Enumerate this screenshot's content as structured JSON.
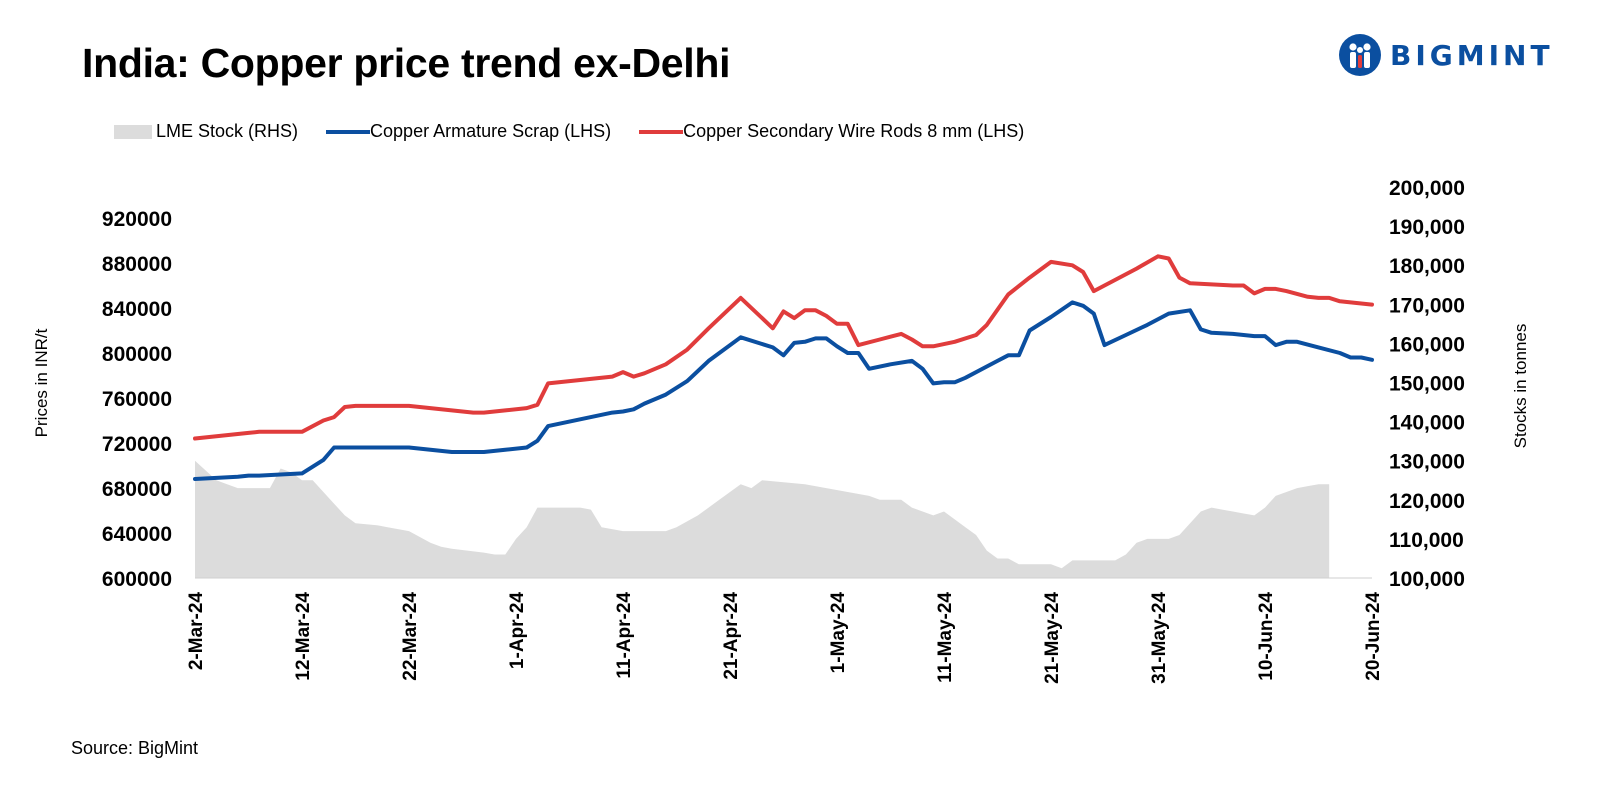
{
  "header": {
    "title": "India: Copper price trend ex-Delhi"
  },
  "logo": {
    "text": "BIGMINT",
    "color": "#0b4fa0"
  },
  "footer": {
    "source": "Source: BigMint"
  },
  "chart_data": {
    "type": "line",
    "title": "India: Copper price trend ex-Delhi",
    "ylabel": "Prices in INR/t",
    "y2label": "Stocks in tonnes",
    "ylim": [
      600000,
      920000
    ],
    "yticks": [
      "920000",
      "880000",
      "840000",
      "800000",
      "760000",
      "720000",
      "680000",
      "640000",
      "600000"
    ],
    "y2lim": [
      100000,
      200000
    ],
    "y2ticks": [
      "200,000",
      "190,000",
      "180,000",
      "170,000",
      "160,000",
      "150,000",
      "140,000",
      "130,000",
      "120,000",
      "110,000",
      "100,000"
    ],
    "xlim_days": [
      0,
      110
    ],
    "xticks": [
      {
        "label": "2-Mar-24",
        "day": 0
      },
      {
        "label": "12-Mar-24",
        "day": 10
      },
      {
        "label": "22-Mar-24",
        "day": 20
      },
      {
        "label": "1-Apr-24",
        "day": 30
      },
      {
        "label": "11-Apr-24",
        "day": 40
      },
      {
        "label": "21-Apr-24",
        "day": 50
      },
      {
        "label": "1-May-24",
        "day": 60
      },
      {
        "label": "11-May-24",
        "day": 70
      },
      {
        "label": "21-May-24",
        "day": 80
      },
      {
        "label": "31-May-24",
        "day": 90
      },
      {
        "label": "10-Jun-24",
        "day": 100
      },
      {
        "label": "20-Jun-24",
        "day": 110
      }
    ],
    "legend_position": "top-left",
    "series": [
      {
        "name": "LME Stock (RHS)",
        "kind": "area",
        "axis": "right",
        "color": "#dcdcdc",
        "points": [
          [
            0,
            130000
          ],
          [
            1,
            127500
          ],
          [
            2,
            125000
          ],
          [
            3,
            124000
          ],
          [
            4,
            123000
          ],
          [
            5,
            123000
          ],
          [
            6,
            123000
          ],
          [
            7,
            123000
          ],
          [
            8,
            128000
          ],
          [
            9,
            127000
          ],
          [
            10,
            125000
          ],
          [
            11,
            125000
          ],
          [
            12,
            122000
          ],
          [
            13,
            119000
          ],
          [
            14,
            116000
          ],
          [
            15,
            114000
          ],
          [
            17,
            113500
          ],
          [
            18,
            113000
          ],
          [
            20,
            112000
          ],
          [
            22,
            109000
          ],
          [
            23,
            108000
          ],
          [
            24,
            107500
          ],
          [
            27,
            106500
          ],
          [
            28,
            106000
          ],
          [
            29,
            106000
          ],
          [
            30,
            110000
          ],
          [
            31,
            113000
          ],
          [
            32,
            118000
          ],
          [
            34,
            118000
          ],
          [
            36,
            118000
          ],
          [
            37,
            117500
          ],
          [
            38,
            113000
          ],
          [
            40,
            112000
          ],
          [
            42,
            112000
          ],
          [
            43,
            112000
          ],
          [
            44,
            112000
          ],
          [
            45,
            113000
          ],
          [
            47,
            116000
          ],
          [
            49,
            120000
          ],
          [
            50,
            122000
          ],
          [
            51,
            124000
          ],
          [
            52,
            123000
          ],
          [
            53,
            125000
          ],
          [
            55,
            124500
          ],
          [
            57,
            124000
          ],
          [
            59,
            123000
          ],
          [
            61,
            122000
          ],
          [
            63,
            121000
          ],
          [
            64,
            120000
          ],
          [
            65,
            120000
          ],
          [
            66,
            120000
          ],
          [
            67,
            118000
          ],
          [
            68,
            117000
          ],
          [
            69,
            116000
          ],
          [
            70,
            117000
          ],
          [
            71,
            115000
          ],
          [
            72,
            113000
          ],
          [
            73,
            111000
          ],
          [
            74,
            107000
          ],
          [
            75,
            105000
          ],
          [
            76,
            105000
          ],
          [
            77,
            103500
          ],
          [
            78,
            103500
          ],
          [
            79,
            103500
          ],
          [
            80,
            103500
          ],
          [
            81,
            102500
          ],
          [
            82,
            104500
          ],
          [
            83,
            104500
          ],
          [
            84,
            104500
          ],
          [
            85,
            104500
          ],
          [
            86,
            104500
          ],
          [
            87,
            106000
          ],
          [
            88,
            109000
          ],
          [
            89,
            110000
          ],
          [
            90,
            110000
          ],
          [
            91,
            110000
          ],
          [
            92,
            111000
          ],
          [
            93,
            114000
          ],
          [
            94,
            117000
          ],
          [
            95,
            118000
          ],
          [
            96,
            117500
          ],
          [
            97,
            117000
          ],
          [
            98,
            116500
          ],
          [
            99,
            116000
          ],
          [
            100,
            118000
          ],
          [
            101,
            121000
          ],
          [
            102,
            122000
          ],
          [
            103,
            123000
          ],
          [
            104,
            123500
          ],
          [
            105,
            124000
          ],
          [
            106,
            124000
          ]
        ]
      },
      {
        "name": "Copper Armature Scrap (LHS)",
        "kind": "line",
        "axis": "left",
        "color": "#0b4fa0",
        "points": [
          [
            0,
            688000
          ],
          [
            2,
            689000
          ],
          [
            4,
            690000
          ],
          [
            5,
            691000
          ],
          [
            6,
            691000
          ],
          [
            8,
            692000
          ],
          [
            10,
            693000
          ],
          [
            12,
            705000
          ],
          [
            13,
            716000
          ],
          [
            15,
            716000
          ],
          [
            17,
            716000
          ],
          [
            20,
            716000
          ],
          [
            22,
            714000
          ],
          [
            24,
            712000
          ],
          [
            27,
            712000
          ],
          [
            29,
            714000
          ],
          [
            31,
            716000
          ],
          [
            32,
            722000
          ],
          [
            33,
            735000
          ],
          [
            35,
            739000
          ],
          [
            37,
            743000
          ],
          [
            39,
            747000
          ],
          [
            40,
            748000
          ],
          [
            41,
            750000
          ],
          [
            42,
            755000
          ],
          [
            44,
            763000
          ],
          [
            46,
            775000
          ],
          [
            48,
            793000
          ],
          [
            51,
            814000
          ],
          [
            54,
            805000
          ],
          [
            55,
            798000
          ],
          [
            56,
            809000
          ],
          [
            57,
            810000
          ],
          [
            58,
            813000
          ],
          [
            59,
            813000
          ],
          [
            60,
            806000
          ],
          [
            61,
            800000
          ],
          [
            62,
            800000
          ],
          [
            63,
            786000
          ],
          [
            65,
            790000
          ],
          [
            67,
            793000
          ],
          [
            68,
            786000
          ],
          [
            69,
            773000
          ],
          [
            70,
            774000
          ],
          [
            71,
            774000
          ],
          [
            72,
            778000
          ],
          [
            74,
            788000
          ],
          [
            75,
            793000
          ],
          [
            76,
            798000
          ],
          [
            77,
            798000
          ],
          [
            78,
            820000
          ],
          [
            80,
            832000
          ],
          [
            82,
            845000
          ],
          [
            83,
            842000
          ],
          [
            84,
            835000
          ],
          [
            85,
            807000
          ],
          [
            87,
            816000
          ],
          [
            89,
            825000
          ],
          [
            91,
            835000
          ],
          [
            93,
            838000
          ],
          [
            94,
            821000
          ],
          [
            95,
            818000
          ],
          [
            97,
            817000
          ],
          [
            99,
            815000
          ],
          [
            100,
            815000
          ],
          [
            101,
            807000
          ],
          [
            102,
            810000
          ],
          [
            103,
            810000
          ],
          [
            105,
            805000
          ],
          [
            107,
            800000
          ],
          [
            108,
            796000
          ],
          [
            109,
            796000
          ],
          [
            110,
            794000
          ]
        ]
      },
      {
        "name": "Copper Secondary Wire Rods 8 mm (LHS)",
        "kind": "line",
        "axis": "left",
        "color": "#e03c3c",
        "points": [
          [
            0,
            724000
          ],
          [
            2,
            726000
          ],
          [
            4,
            728000
          ],
          [
            5,
            729000
          ],
          [
            6,
            730000
          ],
          [
            8,
            730000
          ],
          [
            10,
            730000
          ],
          [
            12,
            740000
          ],
          [
            13,
            743000
          ],
          [
            14,
            752000
          ],
          [
            15,
            753000
          ],
          [
            17,
            753000
          ],
          [
            20,
            753000
          ],
          [
            22,
            751000
          ],
          [
            24,
            749000
          ],
          [
            26,
            747000
          ],
          [
            27,
            747000
          ],
          [
            29,
            749000
          ],
          [
            31,
            751000
          ],
          [
            32,
            754000
          ],
          [
            33,
            773000
          ],
          [
            35,
            775000
          ],
          [
            37,
            777000
          ],
          [
            39,
            779000
          ],
          [
            40,
            783000
          ],
          [
            41,
            779000
          ],
          [
            42,
            782000
          ],
          [
            44,
            790000
          ],
          [
            46,
            803000
          ],
          [
            48,
            822000
          ],
          [
            51,
            849000
          ],
          [
            53,
            831000
          ],
          [
            54,
            822000
          ],
          [
            55,
            837000
          ],
          [
            56,
            831000
          ],
          [
            57,
            838000
          ],
          [
            58,
            838000
          ],
          [
            59,
            833000
          ],
          [
            60,
            826000
          ],
          [
            61,
            826000
          ],
          [
            62,
            807000
          ],
          [
            64,
            812000
          ],
          [
            66,
            817000
          ],
          [
            67,
            812000
          ],
          [
            68,
            806000
          ],
          [
            69,
            806000
          ],
          [
            71,
            810000
          ],
          [
            73,
            816000
          ],
          [
            74,
            825000
          ],
          [
            76,
            852000
          ],
          [
            78,
            867000
          ],
          [
            80,
            881000
          ],
          [
            82,
            878000
          ],
          [
            83,
            872000
          ],
          [
            84,
            855000
          ],
          [
            86,
            865000
          ],
          [
            88,
            875000
          ],
          [
            90,
            886000
          ],
          [
            91,
            884000
          ],
          [
            92,
            867000
          ],
          [
            93,
            862000
          ],
          [
            95,
            861000
          ],
          [
            97,
            860000
          ],
          [
            98,
            860000
          ],
          [
            99,
            853000
          ],
          [
            100,
            857000
          ],
          [
            101,
            857000
          ],
          [
            102,
            855000
          ],
          [
            104,
            850000
          ],
          [
            105,
            849000
          ],
          [
            106,
            849000
          ],
          [
            107,
            846000
          ],
          [
            109,
            844000
          ],
          [
            110,
            843000
          ]
        ]
      }
    ]
  }
}
